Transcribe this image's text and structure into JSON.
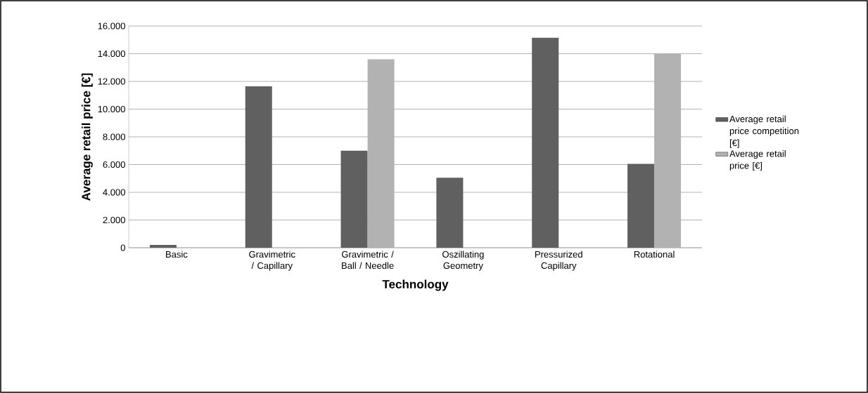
{
  "chart_data": {
    "type": "bar",
    "xlabel": "Technology",
    "ylabel": "Average retail price [€]",
    "categories": [
      "Basic",
      "Gravimetric / Capillary",
      "Gravimetric / Ball / Needle",
      "Oszillating Geometry",
      "Pressurized Capillary",
      "Rotational"
    ],
    "series": [
      {
        "name": "Average retail price competition [€]",
        "color": "#606060",
        "values": [
          200,
          11650,
          7000,
          5050,
          15150,
          6050
        ]
      },
      {
        "name": "Average retail price [€]",
        "color": "#b2b2b2",
        "values": [
          null,
          null,
          13600,
          null,
          null,
          14000
        ]
      }
    ],
    "ylim": [
      0,
      16000
    ],
    "yticks": [
      {
        "value": 0,
        "label": "0"
      },
      {
        "value": 2000,
        "label": "2.000"
      },
      {
        "value": 4000,
        "label": "4.000"
      },
      {
        "value": 6000,
        "label": "6.000"
      },
      {
        "value": 8000,
        "label": "8.000"
      },
      {
        "value": 10000,
        "label": "10.000"
      },
      {
        "value": 12000,
        "label": "12.000"
      },
      {
        "value": 14000,
        "label": "14.000"
      },
      {
        "value": 16000,
        "label": "16.000"
      }
    ],
    "grid": "y",
    "legend": "right"
  }
}
